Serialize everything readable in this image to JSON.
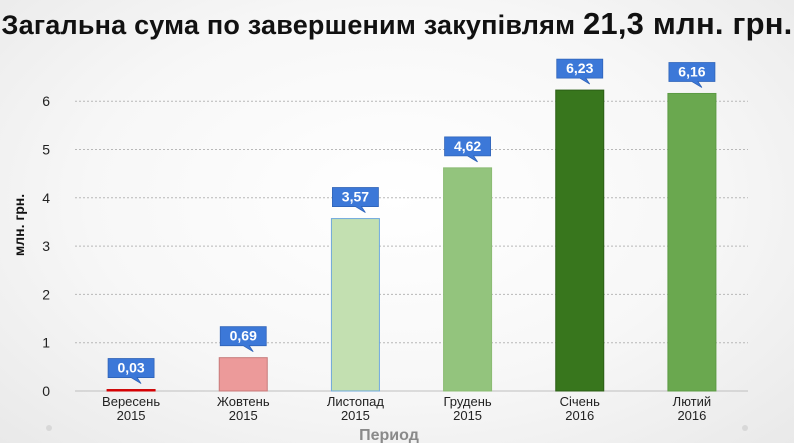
{
  "title": {
    "text": "Загальна сума по завершеним закупівлям",
    "amount": "21,3 млн. грн."
  },
  "chart_data": {
    "type": "bar",
    "categories": [
      [
        "Вересень",
        "2015"
      ],
      [
        "Жовтень",
        "2015"
      ],
      [
        "Листопад",
        "2015"
      ],
      [
        "Грудень",
        "2015"
      ],
      [
        "Січень",
        "2016"
      ],
      [
        "Лютий",
        "2016"
      ]
    ],
    "values": [
      0.03,
      0.69,
      3.57,
      4.62,
      6.23,
      6.16
    ],
    "value_labels": [
      "0,03",
      "0,69",
      "3,57",
      "4,62",
      "6,23",
      "6,16"
    ],
    "bar_colors": [
      "#e8000b",
      "#ec9a9a",
      "#c3e0b1",
      "#93c47d",
      "#38761d",
      "#6aa84f"
    ],
    "bar_borders": [
      "#cc0000",
      "#c77b7b",
      "#6fa8dc",
      "#8bbb74",
      "#2c5f16",
      "#5c9b44"
    ],
    "label_color": "#3c78d8",
    "xlabel": "Период",
    "ylabel": "млн. грн.",
    "ylim": [
      0,
      6.5
    ],
    "yticks": [
      "0",
      "1",
      "2",
      "3",
      "4",
      "5",
      "6"
    ],
    "grid": true
  }
}
